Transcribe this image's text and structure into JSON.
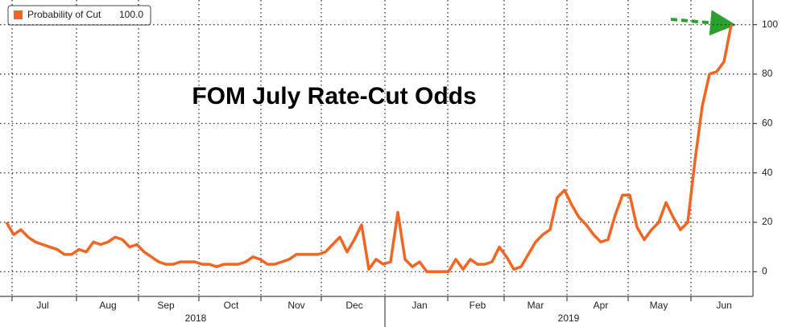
{
  "chart_data": {
    "type": "line",
    "title": "FOM July Rate-Cut Odds",
    "categories": [
      null,
      null,
      null,
      null,
      null,
      "Jul",
      null,
      null,
      null,
      null,
      null,
      null,
      null,
      null,
      "Aug",
      null,
      null,
      null,
      null,
      null,
      null,
      null,
      "Sep",
      null,
      null,
      null,
      null,
      null,
      null,
      null,
      null,
      "Oct",
      null,
      null,
      null,
      null,
      null,
      null,
      null,
      null,
      "Nov",
      null,
      null,
      null,
      null,
      null,
      null,
      null,
      "Dec",
      null,
      null,
      null,
      null,
      null,
      null,
      null,
      null,
      "Jan",
      null,
      null,
      null,
      null,
      null,
      null,
      null,
      "Feb",
      null,
      null,
      null,
      null,
      null,
      null,
      null,
      "Mar",
      null,
      null,
      null,
      null,
      null,
      null,
      null,
      null,
      "Apr",
      null,
      null,
      null,
      null,
      null,
      null,
      null,
      "May",
      null,
      null,
      null,
      null,
      null,
      null,
      null,
      null,
      "Jun",
      null
    ],
    "year_labels": [
      "2018",
      "2019"
    ],
    "series": [
      {
        "name": "Probability of Cut",
        "last_value_label": "100.0",
        "color": "#f26522",
        "values": [
          20,
          15,
          17,
          14,
          12,
          11,
          10,
          9,
          7,
          7,
          9,
          8,
          12,
          11,
          12,
          14,
          13,
          10,
          11,
          8,
          6,
          4,
          3,
          3,
          4,
          4,
          4,
          3,
          3,
          2,
          3,
          3,
          3,
          4,
          6,
          5,
          3,
          3,
          4,
          5,
          7,
          7,
          7,
          7,
          8,
          11,
          14,
          8,
          13,
          19,
          1,
          5,
          3,
          4,
          24,
          5,
          2,
          4,
          0,
          0,
          0,
          0,
          5,
          1,
          5,
          3,
          3,
          4,
          10,
          6,
          1,
          2,
          7,
          12,
          15,
          17,
          30,
          33,
          27,
          22,
          19,
          15,
          12,
          13,
          23,
          31,
          31,
          18,
          13,
          17,
          20,
          28,
          22,
          17,
          20,
          45,
          67,
          80,
          81,
          85,
          100
        ]
      }
    ],
    "ylim": [
      -10,
      110
    ],
    "yticks": [
      0,
      20,
      40,
      60,
      80,
      100
    ],
    "grid": true
  }
}
